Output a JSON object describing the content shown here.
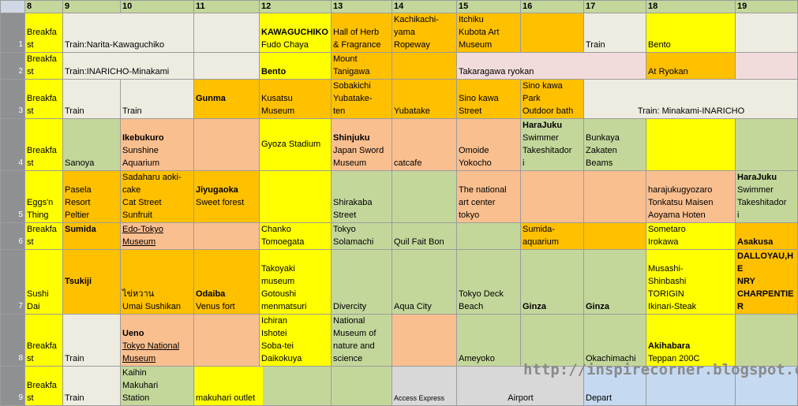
{
  "columns": [
    "8",
    "9",
    "10",
    "11",
    "12",
    "13",
    "14",
    "15",
    "16",
    "17",
    "18",
    "19"
  ],
  "rows": [
    {
      "num": "1",
      "cells": [
        {
          "text": "Breakfa\nst",
          "bg": "#ffff00"
        },
        {
          "text": "Train:Narita-Kawaguchiko",
          "bg": "#eeece1",
          "span": 2
        },
        {
          "text": "",
          "bg": "#eeece1"
        },
        {
          "bold": "KAWAGUCHIKO",
          "text": "Fudo Chaya",
          "bg": "#ffff00"
        },
        {
          "text": "Hall of Herb\n& Fragrance",
          "bg": "#ffc000"
        },
        {
          "text": "Kachikachi-\nyama\nRopeway",
          "bg": "#ffc000"
        },
        {
          "text": "Itchiku\nKubota Art\nMuseum",
          "bg": "#ffc000"
        },
        {
          "text": "",
          "bg": "#ffc000"
        },
        {
          "text": "Train",
          "bg": "#eeece1"
        },
        {
          "text": "Bento",
          "bg": "#ffff00"
        },
        {
          "text": "",
          "bg": "#eeece1"
        }
      ]
    },
    {
      "num": "2",
      "cells": [
        {
          "text": "Breakfa\nst",
          "bg": "#ffff00"
        },
        {
          "text": "Train:INARICHO-Minakami",
          "bg": "#eeece1",
          "span": 2
        },
        {
          "text": "",
          "bg": "#eeece1"
        },
        {
          "bold": "Bento",
          "text": "",
          "bg": "#ffff00"
        },
        {
          "text": "Mount\nTanigawa",
          "bg": "#ffc000"
        },
        {
          "text": "",
          "bg": "#ffc000"
        },
        {
          "text": "Takaragawa ryokan",
          "bg": "#f2dcdb",
          "span": 3
        },
        {
          "text": "At Ryokan",
          "bg": "#ffc000"
        },
        {
          "text": "",
          "bg": "#f2dcdb"
        }
      ]
    },
    {
      "num": "3",
      "cells": [
        {
          "text": "Breakfa\nst",
          "bg": "#ffff00"
        },
        {
          "text": "Train",
          "bg": "#eeece1"
        },
        {
          "text": "Train",
          "bg": "#eeece1"
        },
        {
          "bold": "Gunma",
          "text": "",
          "bg": "#ffc000",
          "middle": true
        },
        {
          "text": "Kusatsu\nMuseum",
          "bg": "#ffc000"
        },
        {
          "text": "Sobakichi\nYubatake-\nten",
          "bg": "#ffc000"
        },
        {
          "text": "Yubatake",
          "bg": "#ffc000"
        },
        {
          "text": "Sino kawa\nStreet",
          "bg": "#ffc000"
        },
        {
          "text": "Sino kawa\nPark\nOutdoor bath",
          "bg": "#ffc000"
        },
        {
          "text": "Train: Minakami-INARICHO",
          "bg": "#eeece1",
          "span": 3,
          "center": true
        }
      ]
    },
    {
      "num": "4",
      "cells": [
        {
          "text": "Breakfa\nst",
          "bg": "#ffff00"
        },
        {
          "text": "Sanoya",
          "bg": "#c4d79b"
        },
        {
          "bold": "Ikebukuro",
          "text": "Sunshine\nAquarium",
          "bg": "#fabf8f"
        },
        {
          "text": "",
          "bg": "#fabf8f"
        },
        {
          "text": "Gyoza Stadium",
          "bg": "#ffff00",
          "middle": true
        },
        {
          "bold": "Shinjuku",
          "text": "Japan Sword\nMuseum",
          "bg": "#fabf8f"
        },
        {
          "text": "catcafe",
          "bg": "#fabf8f"
        },
        {
          "text": "Omoide\nYokocho",
          "bg": "#fabf8f"
        },
        {
          "bold": "HaraJuku",
          "text": "Swimmer\nTakeshitador\ni",
          "bg": "#c4d79b"
        },
        {
          "text": "Bunkaya\nZakaten\nBeams",
          "bg": "#c4d79b"
        },
        {
          "text": "",
          "bg": "#ffff00"
        },
        {
          "text": "",
          "bg": "#c4d79b"
        }
      ]
    },
    {
      "num": "5",
      "cells": [
        {
          "text": "Eggs'n\nThing",
          "bg": "#ffff00"
        },
        {
          "text": "Pasela\nResort\nPeltier",
          "bg": "#ffc000"
        },
        {
          "text": "Sadaharu aoki-\ncake\nCat Street\nSunfruit",
          "bg": "#ffc000"
        },
        {
          "bold": "Jiyugaoka",
          "text": "Sweet forest",
          "bg": "#ffc000",
          "middle": true
        },
        {
          "text": "",
          "bg": "#ffff00"
        },
        {
          "text": "Shirakaba\nStreet",
          "bg": "#c4d79b"
        },
        {
          "text": "",
          "bg": "#c4d79b"
        },
        {
          "text": "The national\nart center\ntokyo",
          "bg": "#fabf8f"
        },
        {
          "text": "",
          "bg": "#fabf8f"
        },
        {
          "text": "",
          "bg": "#fabf8f"
        },
        {
          "text": "harajukugyozaro\nTonkatsu Maisen\nAoyama Hoten",
          "bg": "#fabf8f"
        },
        {
          "bold": "HaraJuku",
          "text": "Swimmer\nTakeshitador\ni",
          "bg": "#c4d79b"
        }
      ]
    },
    {
      "num": "6",
      "cells": [
        {
          "text": "Breakfa\nst",
          "bg": "#ffff00"
        },
        {
          "bold": "Sumida",
          "text": "",
          "bg": "#ffc000",
          "top": true
        },
        {
          "text": "Edo-Tokyo\nMuseum",
          "bg": "#fabf8f",
          "underline": true
        },
        {
          "text": "",
          "bg": "#fabf8f"
        },
        {
          "text": "Chanko\nTomoegata",
          "bg": "#ffff00"
        },
        {
          "text": "Tokyo\nSolamachi",
          "bg": "#c4d79b"
        },
        {
          "text": "Quil Fait Bon",
          "bg": "#c4d79b"
        },
        {
          "text": "",
          "bg": "#c4d79b"
        },
        {
          "text": "Sumida-\naquarium",
          "bg": "#ffc000"
        },
        {
          "text": "",
          "bg": "#ffc000"
        },
        {
          "text": "Sometaro\nIrokawa",
          "bg": "#ffff00"
        },
        {
          "bold": "Asakusa",
          "text": "",
          "bg": "#ffc000"
        }
      ]
    },
    {
      "num": "7",
      "cells": [
        {
          "text": "Sushi\nDai",
          "bg": "#ffff00"
        },
        {
          "bold": "Tsukiji",
          "text": "",
          "bg": "#ffc000",
          "middle": true
        },
        {
          "text": "ไข่หวาน\nUmai Sushikan",
          "bg": "#ffc000"
        },
        {
          "bold": "Odaiba",
          "text": "Venus fort",
          "bg": "#ffc000"
        },
        {
          "text": "Takoyaki\nmuseum\nGotoushi\nmenmatsuri",
          "bg": "#ffff00"
        },
        {
          "text": "Divercity",
          "bg": "#c4d79b"
        },
        {
          "text": "Aqua City",
          "bg": "#c4d79b"
        },
        {
          "text": "Tokyo Deck\nBeach",
          "bg": "#c4d79b"
        },
        {
          "bold": "Ginza",
          "text": "",
          "bg": "#c4d79b"
        },
        {
          "bold": "Ginza",
          "text": "",
          "bg": "#c4d79b"
        },
        {
          "text": "Musashi-\nShinbashi\nTORIGIN\nIkinari-Steak",
          "bg": "#ffff00"
        },
        {
          "boldblock": "DALLOYAU,HE\nNRY\nCHARPENTIER",
          "text": "",
          "bg": "#ffc000"
        }
      ]
    },
    {
      "num": "8",
      "cells": [
        {
          "text": "Breakfa\nst",
          "bg": "#ffff00"
        },
        {
          "text": "Train",
          "bg": "#eeece1"
        },
        {
          "bold": "Ueno",
          "text": "Tokyo National\nMuseum",
          "bg": "#fabf8f",
          "underline": true
        },
        {
          "text": "",
          "bg": "#fabf8f"
        },
        {
          "text": "Ichiran\nIshotei\nSoba-tei\nDaikokuya",
          "bg": "#ffff00"
        },
        {
          "text": "National\nMuseum of\nnature and\nscience",
          "bg": "#c4d79b"
        },
        {
          "text": "",
          "bg": "#fabf8f"
        },
        {
          "text": "Ameyoko",
          "bg": "#c4d79b"
        },
        {
          "text": "",
          "bg": "#c4d79b"
        },
        {
          "text": "Okachimachi",
          "bg": "#c4d79b"
        },
        {
          "bold": "Akihabara",
          "text": "Teppan 200C",
          "bg": "#ffff00"
        },
        {
          "text": "",
          "bg": "#c4d79b"
        }
      ]
    },
    {
      "num": "9",
      "cells": [
        {
          "text": "Breakfa\nst",
          "bg": "#ffff00"
        },
        {
          "text": "Train",
          "bg": "#eeece1"
        },
        {
          "text": "Kaihin\nMakuhari\nStation",
          "bg": "#c4d79b"
        },
        {
          "text": "makuhari outlet",
          "bg": "#c4d79b",
          "span": 2,
          "split": "#ffff00"
        },
        {
          "text": "",
          "bg": "#c4d79b"
        },
        {
          "text": "Access Express",
          "bg": "#d8d8d8",
          "tiny": true
        },
        {
          "text": "Airport",
          "bg": "#d8d8d8",
          "span": 2,
          "center": true
        },
        {
          "text": "Depart",
          "bg": "#c5d9f1"
        },
        {
          "text": "",
          "bg": "#c5d9f1"
        },
        {
          "text": "",
          "bg": "#c5d9f1"
        }
      ]
    }
  ],
  "watermark": "http://inspirecorner.blogspot.com"
}
